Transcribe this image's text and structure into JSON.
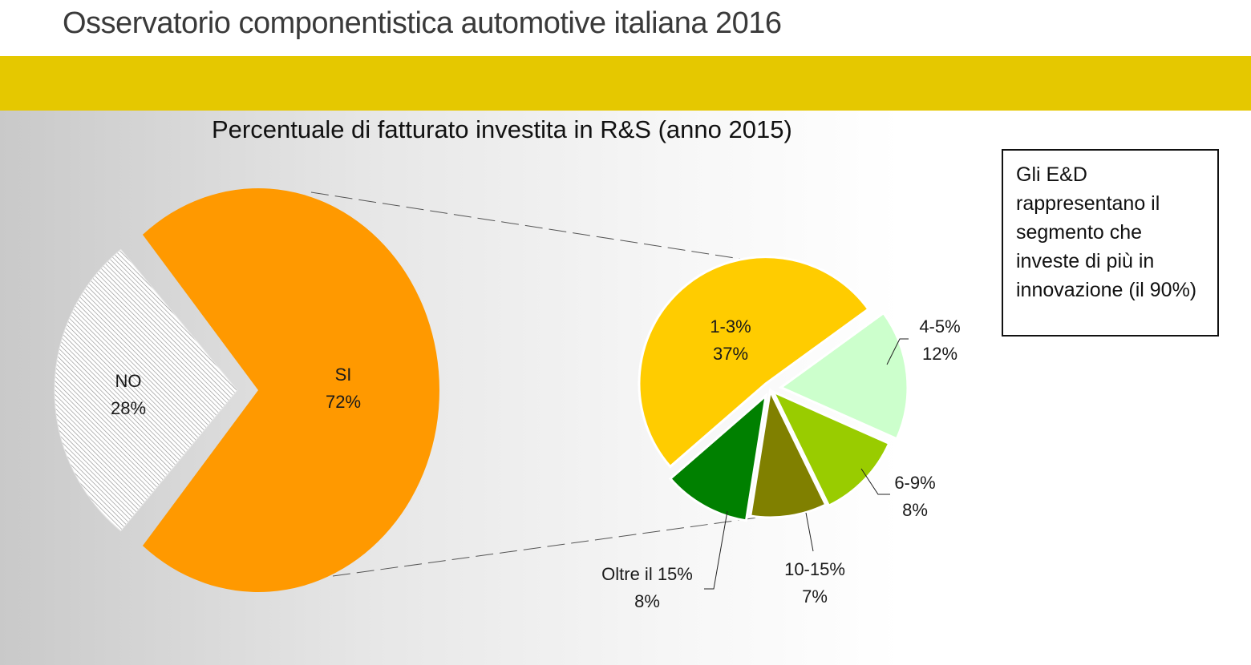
{
  "header": {
    "title": "Osservatorio componentistica automotive italiana 2016"
  },
  "colors": {
    "band": "#e5c800",
    "si": "#ff9900",
    "no_hatch": "#ffffff",
    "r1_3": "#ffcc00",
    "r4_5": "#ccffcc",
    "r6_9": "#99cc00",
    "r10_15": "#808000",
    "r_over15": "#008000"
  },
  "chart_data": [
    {
      "type": "pie",
      "title": "Percentuale di fatturato investita in R&S (anno 2015)",
      "slices": [
        {
          "label": "SI",
          "value": 72,
          "value_label": "72%",
          "color": "#ff9900"
        },
        {
          "label": "NO",
          "value": 28,
          "value_label": "28%",
          "color": "#ffffff",
          "pattern": "hatch"
        }
      ]
    },
    {
      "type": "pie",
      "slices": [
        {
          "label": "1-3%",
          "value": 37,
          "value_label": "37%",
          "color": "#ffcc00"
        },
        {
          "label": "4-5%",
          "value": 12,
          "value_label": "12%",
          "color": "#ccffcc"
        },
        {
          "label": "6-9%",
          "value": 8,
          "value_label": "8%",
          "color": "#99cc00"
        },
        {
          "label": "10-15%",
          "value": 7,
          "value_label": "7%",
          "color": "#808000"
        },
        {
          "label": "Oltre il 15%",
          "value": 8,
          "value_label": "8%",
          "color": "#008000"
        }
      ]
    }
  ],
  "note": {
    "text": "Gli E&D rappresentano il segmento che investe di più in innovazione (il 90%)"
  }
}
